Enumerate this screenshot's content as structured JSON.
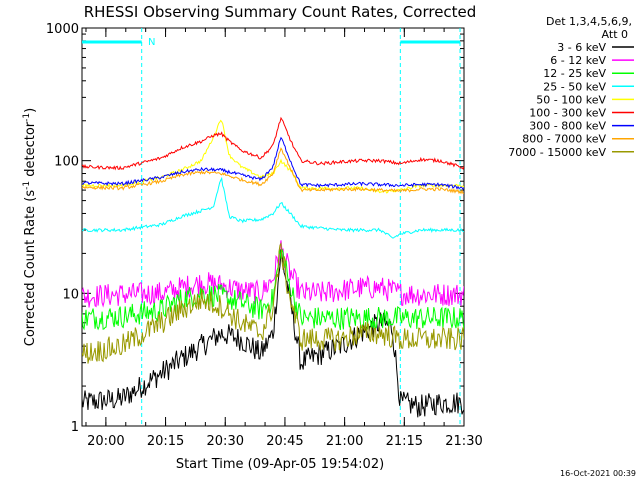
{
  "chart_data": {
    "type": "line",
    "title": "RHESSI Observing Summary Count Rates, Corrected",
    "xlabel": "Start Time (09-Apr-05 19:54:02)",
    "ylabel_main": "Corrected Count Rate (s",
    "ylabel_sup1": "-1",
    "ylabel_mid": " detector",
    "ylabel_sup2": "-1",
    "ylabel_end": ")",
    "y_scale": "log",
    "ylim": [
      1,
      1000
    ],
    "xlim_minutes": [
      0,
      96
    ],
    "y_ticks": [
      {
        "value": 1,
        "label": "1"
      },
      {
        "value": 10,
        "label": "10"
      },
      {
        "value": 100,
        "label": "100"
      },
      {
        "value": 1000,
        "label": "1000"
      }
    ],
    "x_ticks": [
      {
        "minute": 6,
        "label": "20:00"
      },
      {
        "minute": 21,
        "label": "20:15"
      },
      {
        "minute": 36,
        "label": "20:30"
      },
      {
        "minute": 51,
        "label": "20:45"
      },
      {
        "minute": 66,
        "label": "21:00"
      },
      {
        "minute": 81,
        "label": "21:15"
      },
      {
        "minute": 96,
        "label": "21:30"
      }
    ],
    "legend_placement": "right",
    "legend_header": [
      "Det 1,3,4,5,6,9,",
      "Att 0"
    ],
    "night_flag_label": "N",
    "attenuator_markers_minutes": [
      15,
      80,
      95
    ],
    "flag_bars": [
      {
        "from": 0,
        "to": 15
      },
      {
        "from": 80,
        "to": 95
      }
    ],
    "series": [
      {
        "name": "3 - 6 keV",
        "color": "#000000",
        "values_x": [
          0,
          10,
          15,
          20,
          25,
          30,
          35,
          40,
          45,
          48,
          50,
          52,
          55,
          60,
          65,
          70,
          75,
          78,
          80,
          85,
          90,
          96
        ],
        "values_y": [
          1.5,
          1.6,
          2.0,
          2.5,
          3.2,
          4.0,
          5.0,
          4.5,
          3.5,
          5.0,
          20,
          10,
          3.0,
          3.5,
          4.0,
          5.0,
          6.0,
          5.5,
          1.5,
          1.4,
          1.5,
          1.5
        ]
      },
      {
        "name": "6 - 12 keV",
        "color": "#ff00ff",
        "values_x": [
          0,
          10,
          20,
          25,
          30,
          35,
          40,
          45,
          48,
          50,
          52,
          55,
          60,
          65,
          70,
          75,
          80,
          85,
          90,
          96
        ],
        "values_y": [
          9.5,
          9.8,
          10,
          11,
          12,
          11.5,
          10.5,
          10,
          13,
          22,
          15,
          10,
          10,
          10.5,
          11,
          11,
          10,
          9.8,
          9.8,
          9.8
        ]
      },
      {
        "name": "12 - 25 keV",
        "color": "#00ff00",
        "values_x": [
          0,
          10,
          20,
          25,
          30,
          35,
          40,
          45,
          48,
          50,
          52,
          55,
          60,
          65,
          70,
          75,
          80,
          85,
          90,
          96
        ],
        "values_y": [
          6.5,
          6.7,
          7.5,
          9.0,
          10,
          9.5,
          8.5,
          7.5,
          9.0,
          22,
          12,
          6.5,
          6.5,
          6.5,
          6.5,
          6.5,
          6.5,
          6.5,
          6.5,
          6.5
        ]
      },
      {
        "name": "25 - 50 keV",
        "color": "#00ffff",
        "values_x": [
          0,
          10,
          20,
          25,
          30,
          33,
          35,
          37,
          40,
          45,
          48,
          50,
          53,
          55,
          60,
          65,
          70,
          75,
          78,
          80,
          85,
          90,
          96
        ],
        "values_y": [
          30,
          30,
          33,
          38,
          42,
          45,
          75,
          38,
          35,
          36,
          40,
          48,
          38,
          32,
          31,
          30,
          30,
          30,
          26,
          28,
          30,
          30,
          30
        ]
      },
      {
        "name": "50 - 100 keV",
        "color": "#ffff00",
        "values_x": [
          0,
          10,
          20,
          25,
          30,
          33,
          35,
          37,
          40,
          45,
          48,
          50,
          53,
          55,
          60,
          65,
          70,
          75,
          80,
          85,
          90,
          96
        ],
        "values_y": [
          65,
          65,
          75,
          85,
          100,
          150,
          210,
          110,
          90,
          75,
          80,
          100,
          80,
          62,
          62,
          62,
          62,
          58,
          60,
          65,
          65,
          65
        ]
      },
      {
        "name": "100 - 300 keV",
        "color": "#ff0000",
        "values_x": [
          0,
          10,
          20,
          25,
          30,
          33,
          35,
          37,
          40,
          45,
          48,
          50,
          53,
          55,
          60,
          65,
          70,
          75,
          80,
          85,
          90,
          96
        ],
        "values_y": [
          90,
          88,
          105,
          125,
          140,
          155,
          160,
          140,
          120,
          105,
          130,
          210,
          130,
          100,
          95,
          98,
          100,
          100,
          95,
          102,
          100,
          88
        ]
      },
      {
        "name": "300 - 800 keV",
        "color": "#0000ff",
        "values_x": [
          0,
          10,
          20,
          25,
          30,
          35,
          40,
          45,
          48,
          50,
          53,
          55,
          60,
          65,
          70,
          75,
          80,
          85,
          90,
          96
        ],
        "values_y": [
          68,
          67,
          75,
          82,
          86,
          85,
          78,
          72,
          90,
          150,
          90,
          66,
          65,
          66,
          67,
          66,
          65,
          66,
          66,
          62
        ]
      },
      {
        "name": "800 - 7000 keV",
        "color": "#ffa500",
        "values_x": [
          0,
          10,
          20,
          25,
          30,
          35,
          40,
          45,
          48,
          50,
          53,
          55,
          60,
          65,
          70,
          75,
          80,
          85,
          90,
          96
        ],
        "values_y": [
          63,
          62,
          70,
          78,
          82,
          80,
          72,
          66,
          80,
          125,
          80,
          60,
          60,
          61,
          61,
          60,
          59,
          61,
          61,
          58
        ]
      },
      {
        "name": "7000 - 15000 keV",
        "color": "#999900",
        "values_x": [
          0,
          10,
          20,
          25,
          30,
          35,
          40,
          45,
          48,
          50,
          52,
          55,
          60,
          65,
          70,
          75,
          80,
          85,
          90,
          96
        ],
        "values_y": [
          3.5,
          4.0,
          6.0,
          7.5,
          9.0,
          8.0,
          6.0,
          5.0,
          8.0,
          22,
          10,
          4.5,
          4.5,
          4.5,
          5.0,
          5.0,
          4.5,
          4.5,
          4.5,
          4.5
        ]
      }
    ]
  },
  "footer_timestamp": "16-Oct-2021 00:39"
}
